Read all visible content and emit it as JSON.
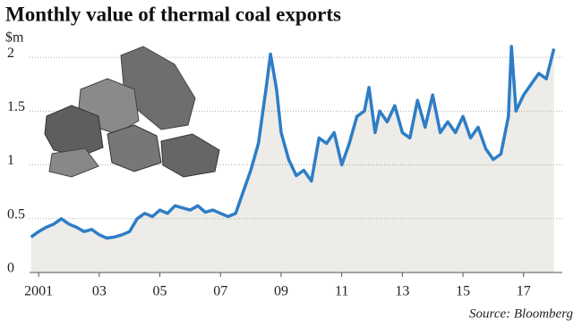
{
  "chart_data": {
    "type": "line",
    "title": "Monthly value of thermal coal exports",
    "y_label": "$m",
    "source": "Source: Bloomberg",
    "x": [
      2000.75,
      2001,
      2001.25,
      2001.5,
      2001.75,
      2002,
      2002.25,
      2002.5,
      2002.75,
      2003,
      2003.25,
      2003.5,
      2003.75,
      2004,
      2004.25,
      2004.5,
      2004.75,
      2005,
      2005.25,
      2005.5,
      2005.75,
      2006,
      2006.25,
      2006.5,
      2006.75,
      2007,
      2007.25,
      2007.5,
      2007.75,
      2008,
      2008.25,
      2008.5,
      2008.65,
      2008.85,
      2009,
      2009.25,
      2009.5,
      2009.75,
      2010,
      2010.25,
      2010.5,
      2010.75,
      2011,
      2011.25,
      2011.5,
      2011.75,
      2011.9,
      2012.1,
      2012.25,
      2012.5,
      2012.75,
      2013,
      2013.25,
      2013.5,
      2013.75,
      2014,
      2014.25,
      2014.5,
      2014.75,
      2015,
      2015.25,
      2015.5,
      2015.75,
      2016,
      2016.25,
      2016.5,
      2016.6,
      2016.75,
      2017,
      2017.25,
      2017.5,
      2017.75,
      2018
    ],
    "series": [
      {
        "name": "Thermal coal exports",
        "color": "#2e7dc6",
        "values": [
          0.33,
          0.38,
          0.42,
          0.45,
          0.5,
          0.45,
          0.42,
          0.38,
          0.4,
          0.35,
          0.32,
          0.33,
          0.35,
          0.38,
          0.5,
          0.55,
          0.52,
          0.58,
          0.55,
          0.62,
          0.6,
          0.58,
          0.62,
          0.56,
          0.58,
          0.55,
          0.52,
          0.55,
          0.75,
          0.95,
          1.2,
          1.7,
          2.03,
          1.7,
          1.3,
          1.05,
          0.9,
          0.95,
          0.85,
          1.25,
          1.2,
          1.3,
          1.0,
          1.2,
          1.45,
          1.5,
          1.72,
          1.3,
          1.5,
          1.4,
          1.55,
          1.3,
          1.25,
          1.6,
          1.35,
          1.65,
          1.3,
          1.4,
          1.3,
          1.45,
          1.25,
          1.35,
          1.15,
          1.05,
          1.1,
          1.45,
          2.1,
          1.5,
          1.65,
          1.75,
          1.85,
          1.8,
          2.08
        ]
      }
    ],
    "xlim": [
      2000.7,
      2018.1
    ],
    "xticks": [
      2001,
      {
        "value": 2003,
        "label": "03"
      },
      {
        "value": 2005,
        "label": "05"
      },
      {
        "value": 2007,
        "label": "07"
      },
      {
        "value": 2009,
        "label": "09"
      },
      {
        "value": 2011,
        "label": "11"
      },
      {
        "value": 2013,
        "label": "13"
      },
      {
        "value": 2015,
        "label": "15"
      },
      {
        "value": 2017,
        "label": "17"
      }
    ],
    "ylim": [
      0,
      2.2
    ],
    "yticks": [
      0,
      0.5,
      1,
      1.5,
      2
    ],
    "grid": true,
    "area_color": "#eeece8"
  }
}
